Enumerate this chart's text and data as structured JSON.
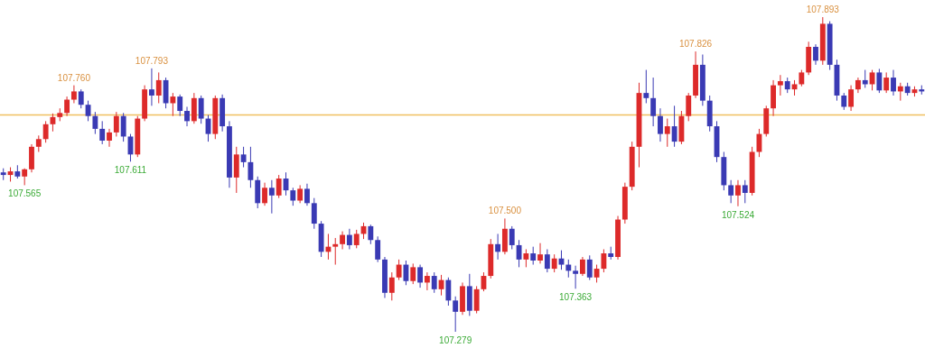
{
  "chart_data": {
    "type": "candlestick",
    "categories": [
      null,
      null,
      null,
      null,
      null,
      null,
      null,
      null,
      null,
      null,
      null,
      null,
      null,
      null,
      null,
      null,
      null,
      null,
      null,
      null,
      null,
      null,
      null,
      null,
      null,
      null,
      null,
      null,
      null,
      null,
      null,
      null,
      null,
      null,
      null,
      null,
      null,
      null,
      null,
      null,
      null,
      null,
      null,
      null,
      null,
      null,
      null,
      null,
      null,
      null,
      null,
      null,
      null,
      null,
      null,
      null,
      null,
      null,
      null,
      null,
      null,
      null,
      null,
      null,
      null,
      null,
      null,
      null,
      null,
      null,
      null,
      null,
      null,
      null,
      null,
      null,
      null,
      null,
      null,
      null,
      null,
      null,
      null,
      null,
      null,
      null,
      null,
      null,
      null,
      null,
      null,
      null,
      null,
      null,
      null,
      null,
      null,
      null,
      null,
      null,
      null,
      null,
      null,
      null,
      null,
      null,
      null,
      null,
      null,
      null,
      null,
      null,
      null,
      null,
      null,
      null,
      null,
      null,
      null,
      null,
      null,
      null,
      null,
      null,
      null,
      null,
      null,
      null,
      null,
      null,
      null
    ],
    "ohlc": [
      [
        107.59,
        107.598,
        107.575,
        107.585
      ],
      [
        107.585,
        107.6,
        107.572,
        107.592
      ],
      [
        107.592,
        107.604,
        107.578,
        107.582
      ],
      [
        107.582,
        107.598,
        107.565,
        107.596
      ],
      [
        107.596,
        107.645,
        107.59,
        107.64
      ],
      [
        107.64,
        107.662,
        107.63,
        107.655
      ],
      [
        107.655,
        107.69,
        107.648,
        107.684
      ],
      [
        107.684,
        107.705,
        107.67,
        107.698
      ],
      [
        107.698,
        107.715,
        107.69,
        107.706
      ],
      [
        107.706,
        107.738,
        107.7,
        107.732
      ],
      [
        107.732,
        107.76,
        107.725,
        107.748
      ],
      [
        107.748,
        107.752,
        107.715,
        107.722
      ],
      [
        107.722,
        107.73,
        107.69,
        107.7
      ],
      [
        107.7,
        107.708,
        107.665,
        107.675
      ],
      [
        107.675,
        107.69,
        107.645,
        107.652
      ],
      [
        107.652,
        107.675,
        107.64,
        107.668
      ],
      [
        107.668,
        107.708,
        107.66,
        107.7
      ],
      [
        107.7,
        107.706,
        107.65,
        107.66
      ],
      [
        107.66,
        107.665,
        107.611,
        107.625
      ],
      [
        107.625,
        107.7,
        107.62,
        107.695
      ],
      [
        107.695,
        107.76,
        107.69,
        107.752
      ],
      [
        107.752,
        107.793,
        107.72,
        107.74
      ],
      [
        107.74,
        107.785,
        107.725,
        107.77
      ],
      [
        107.77,
        107.775,
        107.715,
        107.725
      ],
      [
        107.725,
        107.745,
        107.7,
        107.738
      ],
      [
        107.738,
        107.742,
        107.7,
        107.71
      ],
      [
        107.71,
        107.718,
        107.68,
        107.69
      ],
      [
        107.69,
        107.745,
        107.685,
        107.735
      ],
      [
        107.735,
        107.74,
        107.685,
        107.695
      ],
      [
        107.695,
        107.702,
        107.65,
        107.665
      ],
      [
        107.665,
        107.74,
        107.655,
        107.735
      ],
      [
        107.735,
        107.742,
        107.67,
        107.68
      ],
      [
        107.68,
        107.69,
        107.56,
        107.58
      ],
      [
        107.58,
        107.64,
        107.55,
        107.625
      ],
      [
        107.625,
        107.64,
        107.6,
        107.61
      ],
      [
        107.61,
        107.64,
        107.56,
        107.575
      ],
      [
        107.575,
        107.582,
        107.52,
        107.53
      ],
      [
        107.53,
        107.57,
        107.525,
        107.56
      ],
      [
        107.56,
        107.575,
        107.51,
        107.545
      ],
      [
        107.545,
        107.585,
        107.54,
        107.578
      ],
      [
        107.578,
        107.59,
        107.545,
        107.555
      ],
      [
        107.555,
        107.56,
        107.525,
        107.535
      ],
      [
        107.535,
        107.565,
        107.53,
        107.558
      ],
      [
        107.558,
        107.568,
        107.525,
        107.53
      ],
      [
        107.53,
        107.54,
        107.48,
        107.49
      ],
      [
        107.49,
        107.495,
        107.425,
        107.435
      ],
      [
        107.435,
        107.47,
        107.42,
        107.445
      ],
      [
        107.445,
        107.462,
        107.41,
        107.45
      ],
      [
        107.45,
        107.475,
        107.44,
        107.468
      ],
      [
        107.468,
        107.48,
        107.44,
        107.448
      ],
      [
        107.448,
        107.478,
        107.442,
        107.47
      ],
      [
        107.47,
        107.492,
        107.46,
        107.485
      ],
      [
        107.485,
        107.488,
        107.45,
        107.458
      ],
      [
        107.458,
        107.465,
        107.415,
        107.42
      ],
      [
        107.42,
        107.425,
        107.345,
        107.355
      ],
      [
        107.355,
        107.395,
        107.34,
        107.385
      ],
      [
        107.385,
        107.42,
        107.38,
        107.41
      ],
      [
        107.41,
        107.418,
        107.37,
        107.378
      ],
      [
        107.378,
        107.412,
        107.372,
        107.405
      ],
      [
        107.405,
        107.41,
        107.365,
        107.375
      ],
      [
        107.375,
        107.395,
        107.36,
        107.388
      ],
      [
        107.388,
        107.395,
        107.355,
        107.362
      ],
      [
        107.362,
        107.39,
        107.35,
        107.38
      ],
      [
        107.38,
        107.385,
        107.33,
        107.34
      ],
      [
        107.34,
        107.348,
        107.279,
        107.318
      ],
      [
        107.318,
        107.375,
        107.312,
        107.368
      ],
      [
        107.368,
        107.392,
        107.31,
        107.32
      ],
      [
        107.32,
        107.368,
        107.315,
        107.362
      ],
      [
        107.362,
        107.395,
        107.358,
        107.388
      ],
      [
        107.388,
        107.46,
        107.383,
        107.45
      ],
      [
        107.45,
        107.47,
        107.42,
        107.435
      ],
      [
        107.435,
        107.5,
        107.43,
        107.48
      ],
      [
        107.48,
        107.485,
        107.44,
        107.448
      ],
      [
        107.448,
        107.458,
        107.405,
        107.42
      ],
      [
        107.42,
        107.44,
        107.405,
        107.432
      ],
      [
        107.432,
        107.445,
        107.41,
        107.418
      ],
      [
        107.418,
        107.452,
        107.412,
        107.43
      ],
      [
        107.43,
        107.44,
        107.395,
        107.402
      ],
      [
        107.402,
        107.43,
        107.395,
        107.422
      ],
      [
        107.422,
        107.438,
        107.4,
        107.41
      ],
      [
        107.41,
        107.42,
        107.385,
        107.398
      ],
      [
        107.398,
        107.408,
        107.363,
        107.392
      ],
      [
        107.392,
        107.425,
        107.388,
        107.42
      ],
      [
        107.42,
        107.428,
        107.38,
        107.385
      ],
      [
        107.385,
        107.41,
        107.375,
        107.402
      ],
      [
        107.402,
        107.44,
        107.395,
        107.432
      ],
      [
        107.432,
        107.445,
        107.42,
        107.425
      ],
      [
        107.425,
        107.505,
        107.42,
        107.498
      ],
      [
        107.498,
        107.57,
        107.49,
        107.562
      ],
      [
        107.562,
        107.65,
        107.555,
        107.64
      ],
      [
        107.64,
        107.765,
        107.6,
        107.745
      ],
      [
        107.745,
        107.79,
        107.725,
        107.735
      ],
      [
        107.735,
        107.775,
        107.68,
        107.7
      ],
      [
        107.7,
        107.715,
        107.65,
        107.665
      ],
      [
        107.665,
        107.695,
        107.64,
        107.68
      ],
      [
        107.68,
        107.72,
        107.64,
        107.65
      ],
      [
        107.65,
        107.71,
        107.645,
        107.7
      ],
      [
        107.7,
        107.745,
        107.69,
        107.74
      ],
      [
        107.74,
        107.826,
        107.735,
        107.8
      ],
      [
        107.8,
        107.82,
        107.72,
        107.73
      ],
      [
        107.73,
        107.74,
        107.67,
        107.68
      ],
      [
        107.68,
        107.69,
        107.61,
        107.62
      ],
      [
        107.62,
        107.63,
        107.555,
        107.565
      ],
      [
        107.565,
        107.575,
        107.53,
        107.545
      ],
      [
        107.545,
        107.575,
        107.524,
        107.565
      ],
      [
        107.565,
        107.575,
        107.53,
        107.55
      ],
      [
        107.55,
        107.64,
        107.545,
        107.63
      ],
      [
        107.63,
        107.675,
        107.62,
        107.665
      ],
      [
        107.665,
        107.72,
        107.66,
        107.715
      ],
      [
        107.715,
        107.77,
        107.7,
        107.76
      ],
      [
        107.76,
        107.78,
        107.74,
        107.768
      ],
      [
        107.768,
        107.775,
        107.745,
        107.752
      ],
      [
        107.752,
        107.77,
        107.74,
        107.762
      ],
      [
        107.762,
        107.79,
        107.758,
        107.785
      ],
      [
        107.785,
        107.845,
        107.78,
        107.835
      ],
      [
        107.835,
        107.84,
        107.8,
        107.808
      ],
      [
        107.808,
        107.893,
        107.8,
        107.88
      ],
      [
        107.88,
        107.885,
        107.79,
        107.8
      ],
      [
        107.8,
        107.81,
        107.73,
        107.74
      ],
      [
        107.74,
        107.745,
        107.712,
        107.718
      ],
      [
        107.718,
        107.76,
        107.71,
        107.752
      ],
      [
        107.752,
        107.775,
        107.745,
        107.77
      ],
      [
        107.77,
        107.79,
        107.755,
        107.762
      ],
      [
        107.762,
        107.79,
        107.75,
        107.785
      ],
      [
        107.785,
        107.792,
        107.745,
        107.75
      ],
      [
        107.75,
        107.785,
        107.745,
        107.775
      ],
      [
        107.775,
        107.79,
        107.74,
        107.748
      ],
      [
        107.748,
        107.765,
        107.73,
        107.758
      ],
      [
        107.758,
        107.765,
        107.74,
        107.745
      ],
      [
        107.745,
        107.758,
        107.738,
        107.752
      ],
      [
        107.752,
        107.76,
        107.742,
        107.748
      ]
    ],
    "ref_lines": [
      {
        "axis": "y",
        "value": 107.702,
        "color": "#f0c060"
      }
    ],
    "annotations": [
      {
        "text": "107.565",
        "y": 107.565
      },
      {
        "text": "107.760",
        "y": 107.76
      },
      {
        "text": "107.611",
        "y": 107.611
      },
      {
        "text": "107.793",
        "y": 107.793
      },
      {
        "text": "107.279",
        "y": 107.279
      },
      {
        "text": "107.500",
        "y": 107.5
      },
      {
        "text": "107.363",
        "y": 107.363
      },
      {
        "text": "107.826",
        "y": 107.826
      },
      {
        "text": "107.524",
        "y": 107.524
      },
      {
        "text": "107.893",
        "y": 107.893
      }
    ]
  }
}
